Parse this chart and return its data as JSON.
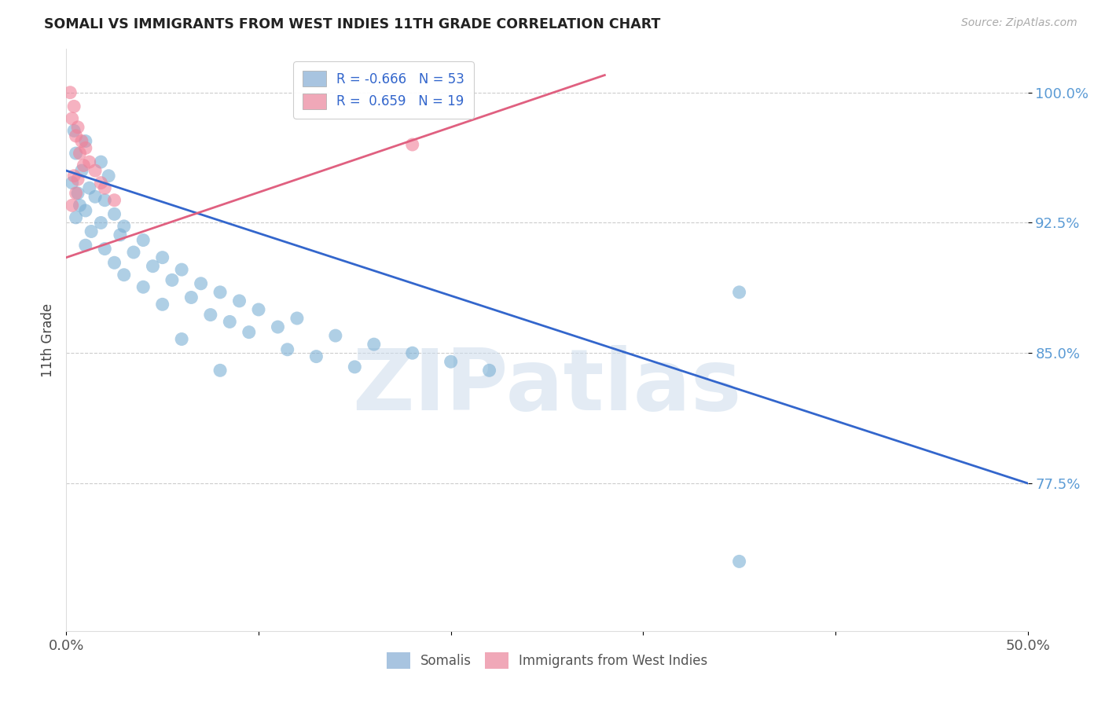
{
  "title": "SOMALI VS IMMIGRANTS FROM WEST INDIES 11TH GRADE CORRELATION CHART",
  "source": "Source: ZipAtlas.com",
  "ylabel": "11th Grade",
  "xlim": [
    0.0,
    50.0
  ],
  "ylim": [
    69.0,
    102.5
  ],
  "yticks": [
    77.5,
    85.0,
    92.5,
    100.0
  ],
  "ytick_labels": [
    "77.5%",
    "85.0%",
    "92.5%",
    "100.0%"
  ],
  "xticks": [
    0.0,
    10.0,
    20.0,
    30.0,
    40.0,
    50.0
  ],
  "xtick_labels": [
    "0.0%",
    "",
    "",
    "",
    "",
    "50.0%"
  ],
  "somali_color": "#7bafd4",
  "west_indies_color": "#f08098",
  "somali_line_color": "#3366cc",
  "west_indies_line_color": "#e06080",
  "watermark": "ZIPatlas",
  "blue_dots": [
    [
      0.4,
      97.8
    ],
    [
      1.0,
      97.2
    ],
    [
      0.5,
      96.5
    ],
    [
      1.8,
      96.0
    ],
    [
      0.8,
      95.5
    ],
    [
      2.2,
      95.2
    ],
    [
      0.3,
      94.8
    ],
    [
      1.2,
      94.5
    ],
    [
      0.6,
      94.2
    ],
    [
      1.5,
      94.0
    ],
    [
      2.0,
      93.8
    ],
    [
      0.7,
      93.5
    ],
    [
      1.0,
      93.2
    ],
    [
      2.5,
      93.0
    ],
    [
      0.5,
      92.8
    ],
    [
      1.8,
      92.5
    ],
    [
      3.0,
      92.3
    ],
    [
      1.3,
      92.0
    ],
    [
      2.8,
      91.8
    ],
    [
      4.0,
      91.5
    ],
    [
      1.0,
      91.2
    ],
    [
      2.0,
      91.0
    ],
    [
      3.5,
      90.8
    ],
    [
      5.0,
      90.5
    ],
    [
      2.5,
      90.2
    ],
    [
      4.5,
      90.0
    ],
    [
      6.0,
      89.8
    ],
    [
      3.0,
      89.5
    ],
    [
      5.5,
      89.2
    ],
    [
      7.0,
      89.0
    ],
    [
      4.0,
      88.8
    ],
    [
      8.0,
      88.5
    ],
    [
      6.5,
      88.2
    ],
    [
      9.0,
      88.0
    ],
    [
      5.0,
      87.8
    ],
    [
      10.0,
      87.5
    ],
    [
      7.5,
      87.2
    ],
    [
      12.0,
      87.0
    ],
    [
      8.5,
      86.8
    ],
    [
      11.0,
      86.5
    ],
    [
      9.5,
      86.2
    ],
    [
      14.0,
      86.0
    ],
    [
      6.0,
      85.8
    ],
    [
      16.0,
      85.5
    ],
    [
      11.5,
      85.2
    ],
    [
      18.0,
      85.0
    ],
    [
      13.0,
      84.8
    ],
    [
      20.0,
      84.5
    ],
    [
      15.0,
      84.2
    ],
    [
      22.0,
      84.0
    ],
    [
      8.0,
      84.0
    ],
    [
      35.0,
      88.5
    ],
    [
      35.0,
      73.0
    ]
  ],
  "west_indies_dots": [
    [
      0.2,
      100.0
    ],
    [
      0.4,
      99.2
    ],
    [
      0.3,
      98.5
    ],
    [
      0.6,
      98.0
    ],
    [
      0.5,
      97.5
    ],
    [
      0.8,
      97.2
    ],
    [
      1.0,
      96.8
    ],
    [
      0.7,
      96.5
    ],
    [
      1.2,
      96.0
    ],
    [
      0.9,
      95.8
    ],
    [
      1.5,
      95.5
    ],
    [
      0.4,
      95.2
    ],
    [
      0.6,
      95.0
    ],
    [
      1.8,
      94.8
    ],
    [
      2.0,
      94.5
    ],
    [
      0.5,
      94.2
    ],
    [
      2.5,
      93.8
    ],
    [
      0.3,
      93.5
    ],
    [
      18.0,
      97.0
    ]
  ],
  "blue_line": {
    "x0": 0.0,
    "y0": 95.5,
    "x1": 50.0,
    "y1": 77.5
  },
  "pink_line": {
    "x0": 0.0,
    "y0": 90.5,
    "x1": 28.0,
    "y1": 101.0
  }
}
